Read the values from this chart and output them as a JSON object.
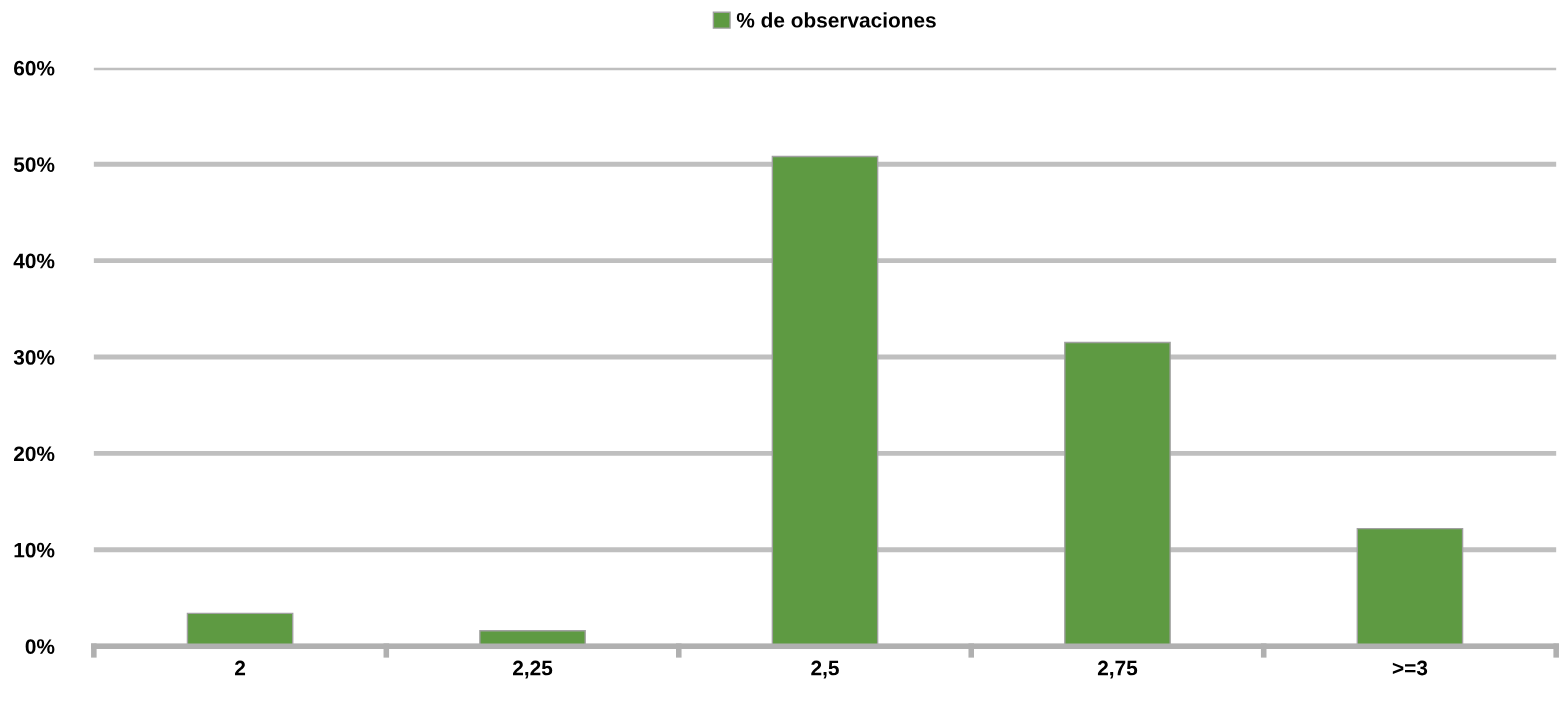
{
  "chart_data": {
    "type": "bar",
    "categories": [
      "2",
      "2,25",
      "2,5",
      "2,75",
      ">=3"
    ],
    "series": [
      {
        "name": "% de observaciones",
        "color": "#5e9a42",
        "values": [
          3.4,
          1.6,
          50.8,
          31.5,
          12.2
        ]
      }
    ],
    "ylim": [
      0,
      60
    ],
    "yticks": [
      {
        "value": 0,
        "label": "0%"
      },
      {
        "value": 10,
        "label": "10%"
      },
      {
        "value": 20,
        "label": "20%"
      },
      {
        "value": 30,
        "label": "30%"
      },
      {
        "value": 40,
        "label": "40%"
      },
      {
        "value": 50,
        "label": "50%"
      },
      {
        "value": 60,
        "label": "60%"
      }
    ],
    "grid": "y",
    "legend": "top"
  }
}
